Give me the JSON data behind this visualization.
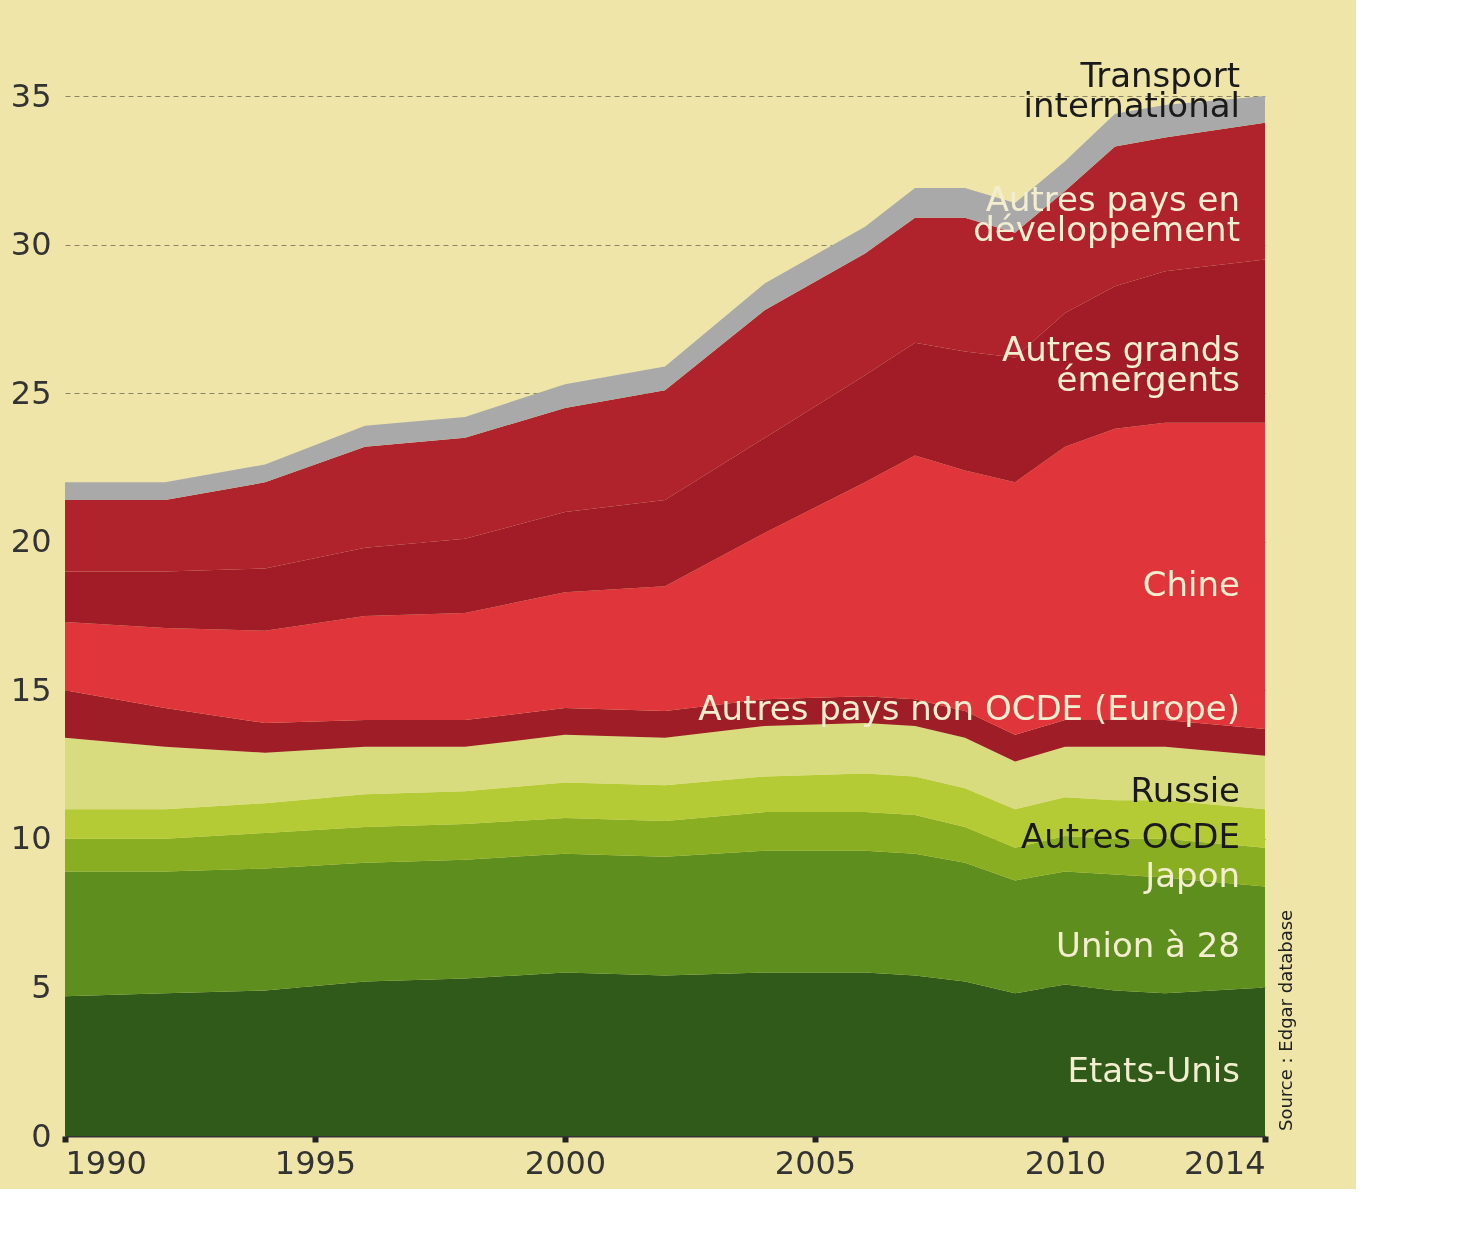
{
  "chart_data": {
    "type": "area",
    "stacked": true,
    "x": [
      1990,
      1992,
      1994,
      1996,
      1998,
      2000,
      2002,
      2004,
      2006,
      2007,
      2008,
      2009,
      2010,
      2011,
      2012,
      2014
    ],
    "series": [
      {
        "name": "Etats-Unis",
        "color": "#2f5a1a",
        "values": [
          4.7,
          4.8,
          4.9,
          5.2,
          5.3,
          5.5,
          5.4,
          5.5,
          5.5,
          5.4,
          5.2,
          4.8,
          5.1,
          4.9,
          4.8,
          5.0
        ]
      },
      {
        "name": "Union à 28",
        "color": "#5e8f1e",
        "values": [
          4.2,
          4.1,
          4.1,
          4.0,
          4.0,
          4.0,
          4.0,
          4.1,
          4.1,
          4.1,
          4.0,
          3.8,
          3.8,
          3.9,
          3.9,
          3.4
        ]
      },
      {
        "name": "Japon",
        "color": "#8aae22",
        "values": [
          1.1,
          1.1,
          1.2,
          1.2,
          1.2,
          1.2,
          1.2,
          1.3,
          1.3,
          1.3,
          1.2,
          1.1,
          1.2,
          1.2,
          1.3,
          1.3
        ]
      },
      {
        "name": "Autres OCDE",
        "color": "#b4cb35",
        "values": [
          1.0,
          1.0,
          1.0,
          1.1,
          1.1,
          1.2,
          1.2,
          1.2,
          1.3,
          1.3,
          1.3,
          1.3,
          1.3,
          1.3,
          1.3,
          1.3
        ]
      },
      {
        "name": "Russie",
        "color": "#d8dc7e",
        "values": [
          2.4,
          2.1,
          1.7,
          1.6,
          1.5,
          1.6,
          1.6,
          1.7,
          1.7,
          1.7,
          1.7,
          1.6,
          1.7,
          1.8,
          1.8,
          1.8
        ]
      },
      {
        "name": "Autres pays non OCDE (Europe)",
        "color": "#9e1d27",
        "values": [
          1.6,
          1.3,
          1.0,
          0.9,
          0.9,
          0.9,
          0.9,
          0.9,
          0.9,
          0.9,
          0.9,
          0.9,
          0.9,
          0.9,
          0.9,
          0.9
        ]
      },
      {
        "name": "Chine",
        "color": "#e0353b",
        "values": [
          2.3,
          2.7,
          3.1,
          3.5,
          3.6,
          3.9,
          4.2,
          5.6,
          7.2,
          8.2,
          8.1,
          8.5,
          9.2,
          9.8,
          10.0,
          10.3
        ]
      },
      {
        "name": "Autres grands émergents",
        "color": "#a11c27",
        "values": [
          1.7,
          1.9,
          2.1,
          2.3,
          2.5,
          2.7,
          2.9,
          3.2,
          3.6,
          3.8,
          4.0,
          4.2,
          4.5,
          4.8,
          5.1,
          5.5
        ]
      },
      {
        "name": "Autres pays en développement",
        "color": "#b0222c",
        "values": [
          2.4,
          2.4,
          2.9,
          3.4,
          3.4,
          3.5,
          3.7,
          4.3,
          4.1,
          4.2,
          4.5,
          4.2,
          4.1,
          4.7,
          4.5,
          4.6
        ]
      },
      {
        "name": "Transport international",
        "color": "#a9a9a9",
        "values": [
          0.6,
          0.6,
          0.6,
          0.7,
          0.7,
          0.8,
          0.8,
          0.9,
          0.9,
          1.0,
          1.0,
          1.0,
          1.0,
          1.1,
          1.1,
          0.9
        ]
      }
    ],
    "xlim": [
      1990,
      2014
    ],
    "xticks": [
      1990,
      1995,
      2000,
      2005,
      2010,
      2014
    ],
    "ylim": [
      0,
      35
    ],
    "yticks": [
      0,
      5,
      10,
      15,
      20,
      25,
      30,
      35
    ],
    "grid": "y",
    "annotations": [
      "Source : Edgar database"
    ]
  }
}
